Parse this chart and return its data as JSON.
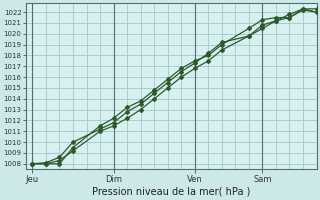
{
  "xlabel": "Pression niveau de la mer( hPa )",
  "bg_color": "#cce8e8",
  "plot_bg_color": "#d8f0f0",
  "grid_color": "#a0c8c8",
  "vline_color": "#507070",
  "line_color": "#2d5a2d",
  "ylim": [
    1007.5,
    1022.8
  ],
  "yticks": [
    1008,
    1009,
    1010,
    1011,
    1012,
    1013,
    1014,
    1015,
    1016,
    1017,
    1018,
    1019,
    1020,
    1021,
    1022
  ],
  "xtick_labels": [
    "Jeu",
    "Dim",
    "Ven",
    "Sam"
  ],
  "xtick_positions": [
    0,
    72,
    144,
    204
  ],
  "xlim": [
    -6,
    252
  ],
  "vline_positions": [
    0,
    72,
    144,
    204
  ],
  "line1_x": [
    0,
    12,
    24,
    36,
    60,
    72,
    84,
    96,
    108,
    120,
    132,
    144,
    156,
    168,
    192,
    204,
    216,
    228,
    240,
    252
  ],
  "line1_y": [
    1008.0,
    1008.0,
    1008.3,
    1009.2,
    1011.0,
    1011.5,
    1012.2,
    1013.0,
    1014.0,
    1015.0,
    1016.0,
    1016.8,
    1017.5,
    1018.5,
    1019.8,
    1020.5,
    1021.2,
    1021.8,
    1022.3,
    1022.3
  ],
  "line2_x": [
    0,
    12,
    24,
    36,
    60,
    72,
    84,
    96,
    108,
    120,
    132,
    144,
    156,
    168,
    192,
    204,
    216,
    228,
    240,
    252
  ],
  "line2_y": [
    1008.0,
    1008.1,
    1008.6,
    1010.0,
    1011.2,
    1011.8,
    1012.8,
    1013.5,
    1014.5,
    1015.5,
    1016.5,
    1017.3,
    1018.2,
    1019.2,
    1019.8,
    1020.8,
    1021.2,
    1021.5,
    1022.2,
    1022.0
  ],
  "line3_x": [
    0,
    12,
    24,
    36,
    60,
    72,
    84,
    96,
    108,
    120,
    132,
    144,
    156,
    168,
    192,
    204,
    216,
    228,
    240,
    252
  ],
  "line3_y": [
    1008.0,
    1008.0,
    1008.0,
    1009.5,
    1011.5,
    1012.2,
    1013.2,
    1013.8,
    1014.8,
    1015.8,
    1016.8,
    1017.5,
    1018.0,
    1019.0,
    1020.5,
    1021.3,
    1021.5,
    1021.5,
    1022.3,
    1022.0
  ]
}
